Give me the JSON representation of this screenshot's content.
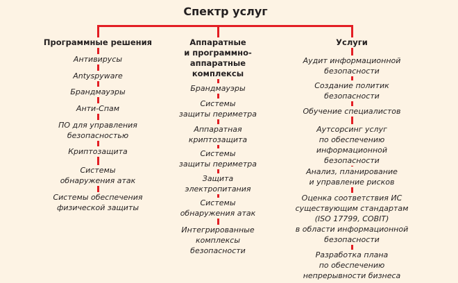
{
  "title": "Спектр услуг",
  "colors": {
    "connector": "#e31e24",
    "background": "#fdf3e4"
  },
  "columns": [
    {
      "header": [
        "Программные решения"
      ],
      "items": [
        [
          "Антивирусы"
        ],
        [
          "Antyspyware"
        ],
        [
          "Брандмауэры"
        ],
        [
          "Анти-Спам"
        ],
        [
          "ПО для управления",
          "безопасностью"
        ],
        [
          "Криптозащита"
        ],
        [
          "Системы",
          "обнаружения атак"
        ],
        [
          "Системы обеспечения",
          "физической защиты"
        ]
      ]
    },
    {
      "header": [
        "Аппаратные",
        "и программно-",
        "аппаратные",
        "комплексы"
      ],
      "items": [
        [
          "Брандмауэры"
        ],
        [
          "Системы",
          "защиты периметра"
        ],
        [
          "Аппаратная",
          "криптозащита"
        ],
        [
          "Системы",
          "защиты периметра"
        ],
        [
          "Защита",
          "электропитания"
        ],
        [
          "Системы",
          "обнаружения атак"
        ],
        [
          "Интегрированные",
          "комплексы",
          "безопасности"
        ]
      ]
    },
    {
      "header": [
        "Услуги"
      ],
      "items": [
        [
          "Аудит информационной",
          "безопасности"
        ],
        [
          "Создание политик",
          "безопасности"
        ],
        [
          "Обучение специалистов"
        ],
        [
          "Аутсорсинг услуг",
          "по обеспечению",
          "информационной",
          "безопасности"
        ],
        [
          "Анализ, планирование",
          "и управление рисков"
        ],
        [
          "Оценка соответствия ИС",
          "существующим стандартам",
          "(ISO 17799, COBIT)",
          "в области информационной",
          "безопасности"
        ],
        [
          "Разработка плана",
          "по обеспечению",
          "непрерывности бизнеса"
        ]
      ]
    }
  ]
}
